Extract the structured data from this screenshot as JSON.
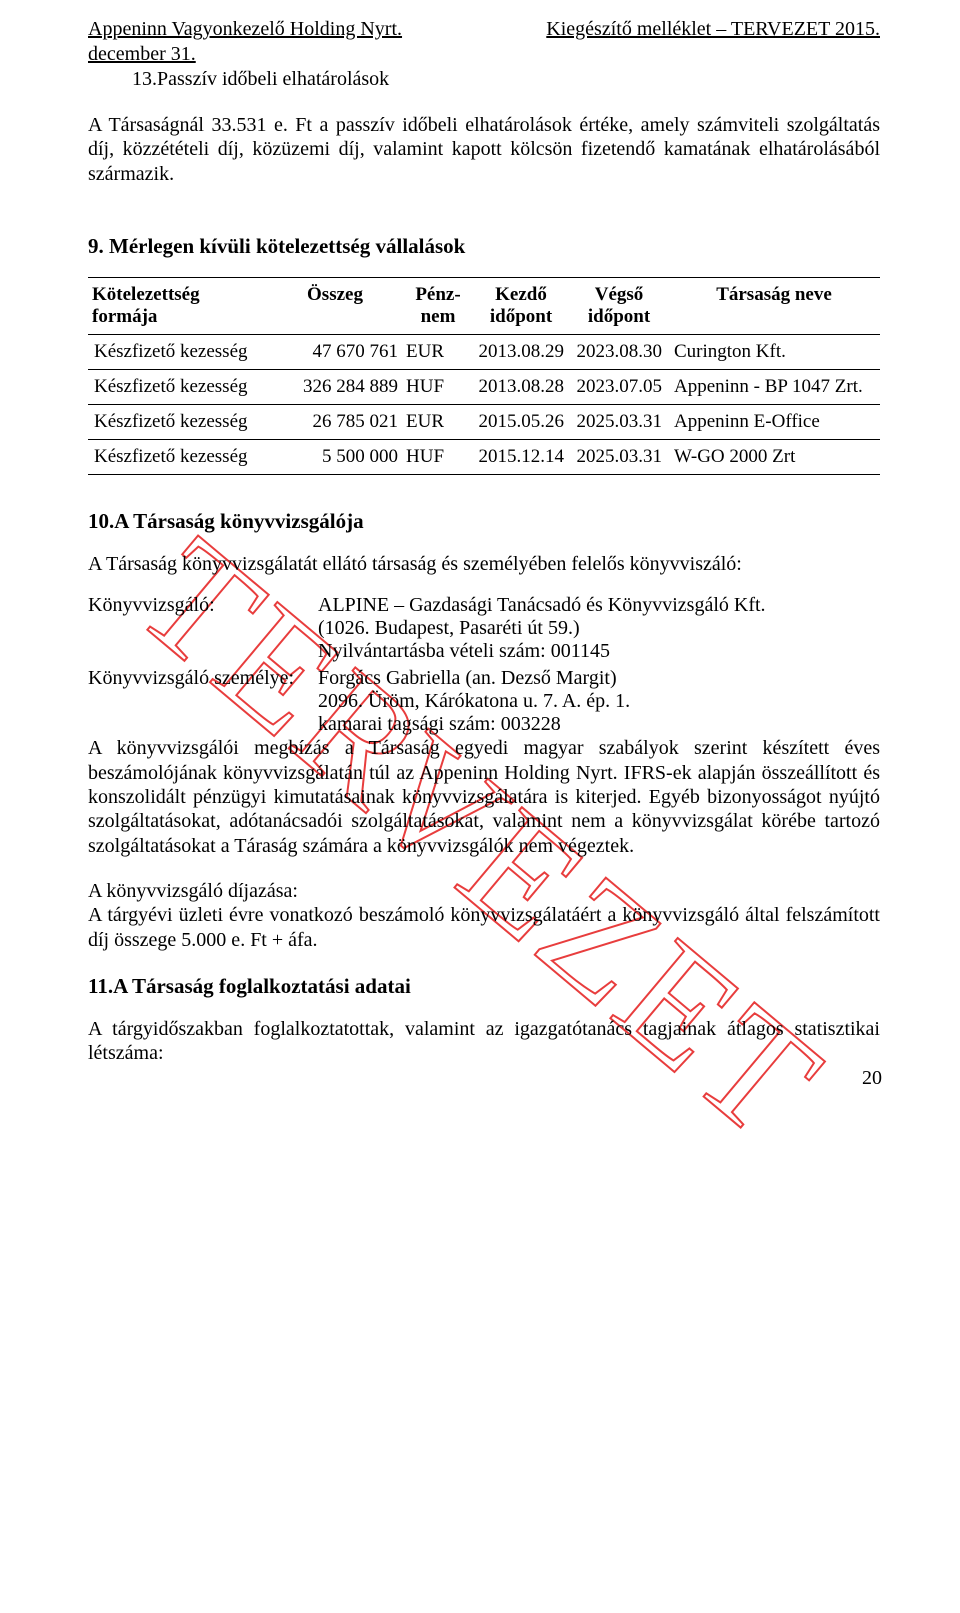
{
  "header": {
    "left": "Appeninn Vagyonkezelő Holding Nyrt.",
    "right": "Kiegészítő melléklet – TERVEZET  2015.",
    "date_line": "december 31."
  },
  "section13": {
    "title": "13.Passzív időbeli elhatárolások",
    "para": "A Társaságnál 33.531 e. Ft a passzív időbeli elhatárolások értéke, amely számviteli szolgáltatás díj, közzétételi díj, közüzemi díj, valamint kapott kölcsön fizetendő kamatának elhatárolásából származik."
  },
  "section9": {
    "title": "9.  Mérlegen kívüli kötelezettség vállalások",
    "columns": {
      "c0": "Kötelezettség formája",
      "c1": "Összeg",
      "c2": "Pénz-\nnem",
      "c3": "Kezdő időpont",
      "c4": "Végső időpont",
      "c5": "Társaság neve"
    },
    "rows": [
      {
        "form": "Készfizető kezesség",
        "amount": "47 670 761",
        "currency": "EUR",
        "start": "2013.08.29",
        "end": "2023.08.30",
        "company": "Curington Kft."
      },
      {
        "form": "Készfizető kezesség",
        "amount": "326 284 889",
        "currency": "HUF",
        "start": "2013.08.28",
        "end": "2023.07.05",
        "company": "Appeninn - BP 1047 Zrt."
      },
      {
        "form": "Készfizető kezesség",
        "amount": "26 785 021",
        "currency": "EUR",
        "start": "2015.05.26",
        "end": "2025.03.31",
        "company": "Appeninn E-Office"
      },
      {
        "form": "Készfizető kezesség",
        "amount": "5 500 000",
        "currency": "HUF",
        "start": "2015.12.14",
        "end": "2025.03.31",
        "company": "W-GO 2000 Zrt"
      }
    ]
  },
  "section10": {
    "title": "10.A Társaság könyvvizsgálója",
    "intro": "A Társaság könyvvizsgálatát ellátó társaság és személyében felelős könyvviszáló:",
    "auditor_label": "Könyvvizsgáló:",
    "auditor_name": "ALPINE – Gazdasági Tanácsadó és Könyvvizsgáló Kft.",
    "auditor_addr": "(1026. Budapest, Pasaréti út 59.)",
    "auditor_reg": "Nyilvántartásba vételi szám: 001145",
    "person_label": "Könyvvizsgáló személye:",
    "person_name": "Forgács Gabriella (an. Dezső Margit)",
    "person_addr": "2096. Üröm, Kárókatona u. 7. A. ép. 1.",
    "person_reg": "kamarai tagsági szám: 003228",
    "para1": "A könyvvizsgálói megbízás a Társaság egyedi magyar szabályok szerint készített éves beszámolójának könyvvizsgálatán túl az Appeninn Holding Nyrt. IFRS-ek alapján összeállított és konszolidált pénzügyi kimutatásainak könyvvizsgálatára is kiterjed. Egyéb bizonyosságot nyújtó szolgáltatásokat, adótanácsadói szolgáltatásokat, valamint nem a könyvvizsgálat körébe tartozó szolgáltatásokat a Táraság számára a könyvvizsgálók nem végeztek.",
    "para2a": "A könyvvizsgáló díjazása:",
    "para2b": "A tárgyévi üzleti évre vonatkozó beszámoló könyvvizsgálatáért a könyvvizsgáló által felszámított díj összege 5.000 e. Ft + áfa."
  },
  "section11": {
    "title": "11.A Társaság foglalkoztatási adatai",
    "para": "A tárgyidőszakban foglalkoztatottak, valamint az igazgatótanács tagjainak átlagos statisztikai létszáma:"
  },
  "watermark_text": "TERVEZET",
  "page_number": "20"
}
